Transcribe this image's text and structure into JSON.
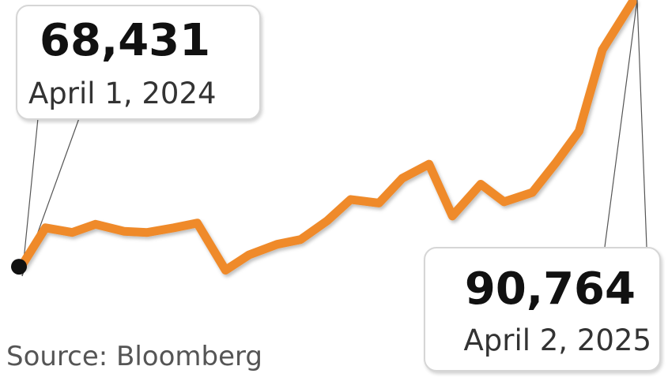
{
  "chart_data": {
    "type": "line",
    "title": "",
    "xlabel": "",
    "ylabel": "",
    "x": [
      "2024-04-01",
      "2024-04-15",
      "2024-05-01",
      "2024-05-15",
      "2024-06-01",
      "2024-06-15",
      "2024-07-01",
      "2024-07-15",
      "2024-08-01",
      "2024-08-15",
      "2024-09-01",
      "2024-09-15",
      "2024-10-01",
      "2024-10-15",
      "2024-11-01",
      "2024-11-15",
      "2024-12-01",
      "2024-12-15",
      "2025-01-01",
      "2025-01-15",
      "2025-02-01",
      "2025-02-15",
      "2025-03-01",
      "2025-03-15",
      "2025-04-02"
    ],
    "series": [
      {
        "values": [
          68431,
          71600,
          71200,
          71900,
          71300,
          71200,
          71600,
          72000,
          68000,
          69300,
          70200,
          70600,
          72200,
          74000,
          73700,
          75800,
          77000,
          72600,
          75300,
          73800,
          74600,
          77100,
          79800,
          86700,
          90764
        ]
      }
    ],
    "line_color": "#ef8a2a",
    "grid": false,
    "legend": "none"
  },
  "callouts": {
    "start": {
      "value": "68,431",
      "date": "April 1, 2024"
    },
    "end": {
      "value": "90,764",
      "date": "April 2, 2025"
    }
  },
  "source": "Source: Bloomberg"
}
